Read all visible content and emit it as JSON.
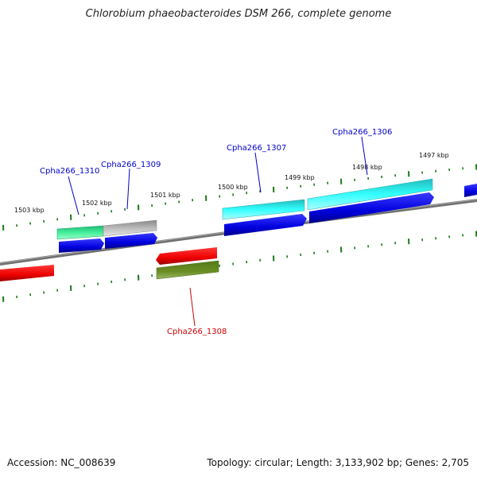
{
  "title": "Chlorobium phaeobacteroides DSM 266, complete genome",
  "accession": "Accession: NC_008639",
  "summary": "Topology: circular; Length: 3,133,902 bp; Genes: 2,705",
  "ticks": [
    {
      "label": "1503 kbp"
    },
    {
      "label": "1502 kbp"
    },
    {
      "label": "1501 kbp"
    },
    {
      "label": "1500 kbp"
    },
    {
      "label": "1499 kbp"
    },
    {
      "label": "1498 kbp"
    },
    {
      "label": "1497 kbp"
    }
  ],
  "gene_labels": [
    {
      "name": "Cpha266_1310",
      "color": "#0000cc"
    },
    {
      "name": "Cpha266_1309",
      "color": "#0000cc"
    },
    {
      "name": "Cpha266_1307",
      "color": "#0000cc"
    },
    {
      "name": "Cpha266_1306",
      "color": "#0000cc"
    },
    {
      "name": "Cpha266_1308",
      "color": "#cc0000"
    }
  ],
  "colors": {
    "backbone": "#7a7a7a",
    "tick": "#1a7a1a",
    "cds_forward": "#0000ee",
    "cds_reverse": "#ee0000",
    "teal": "#33dd99",
    "cyan": "#33ffff",
    "grey": "#c8c8c8",
    "olive": "#6b8e23"
  }
}
